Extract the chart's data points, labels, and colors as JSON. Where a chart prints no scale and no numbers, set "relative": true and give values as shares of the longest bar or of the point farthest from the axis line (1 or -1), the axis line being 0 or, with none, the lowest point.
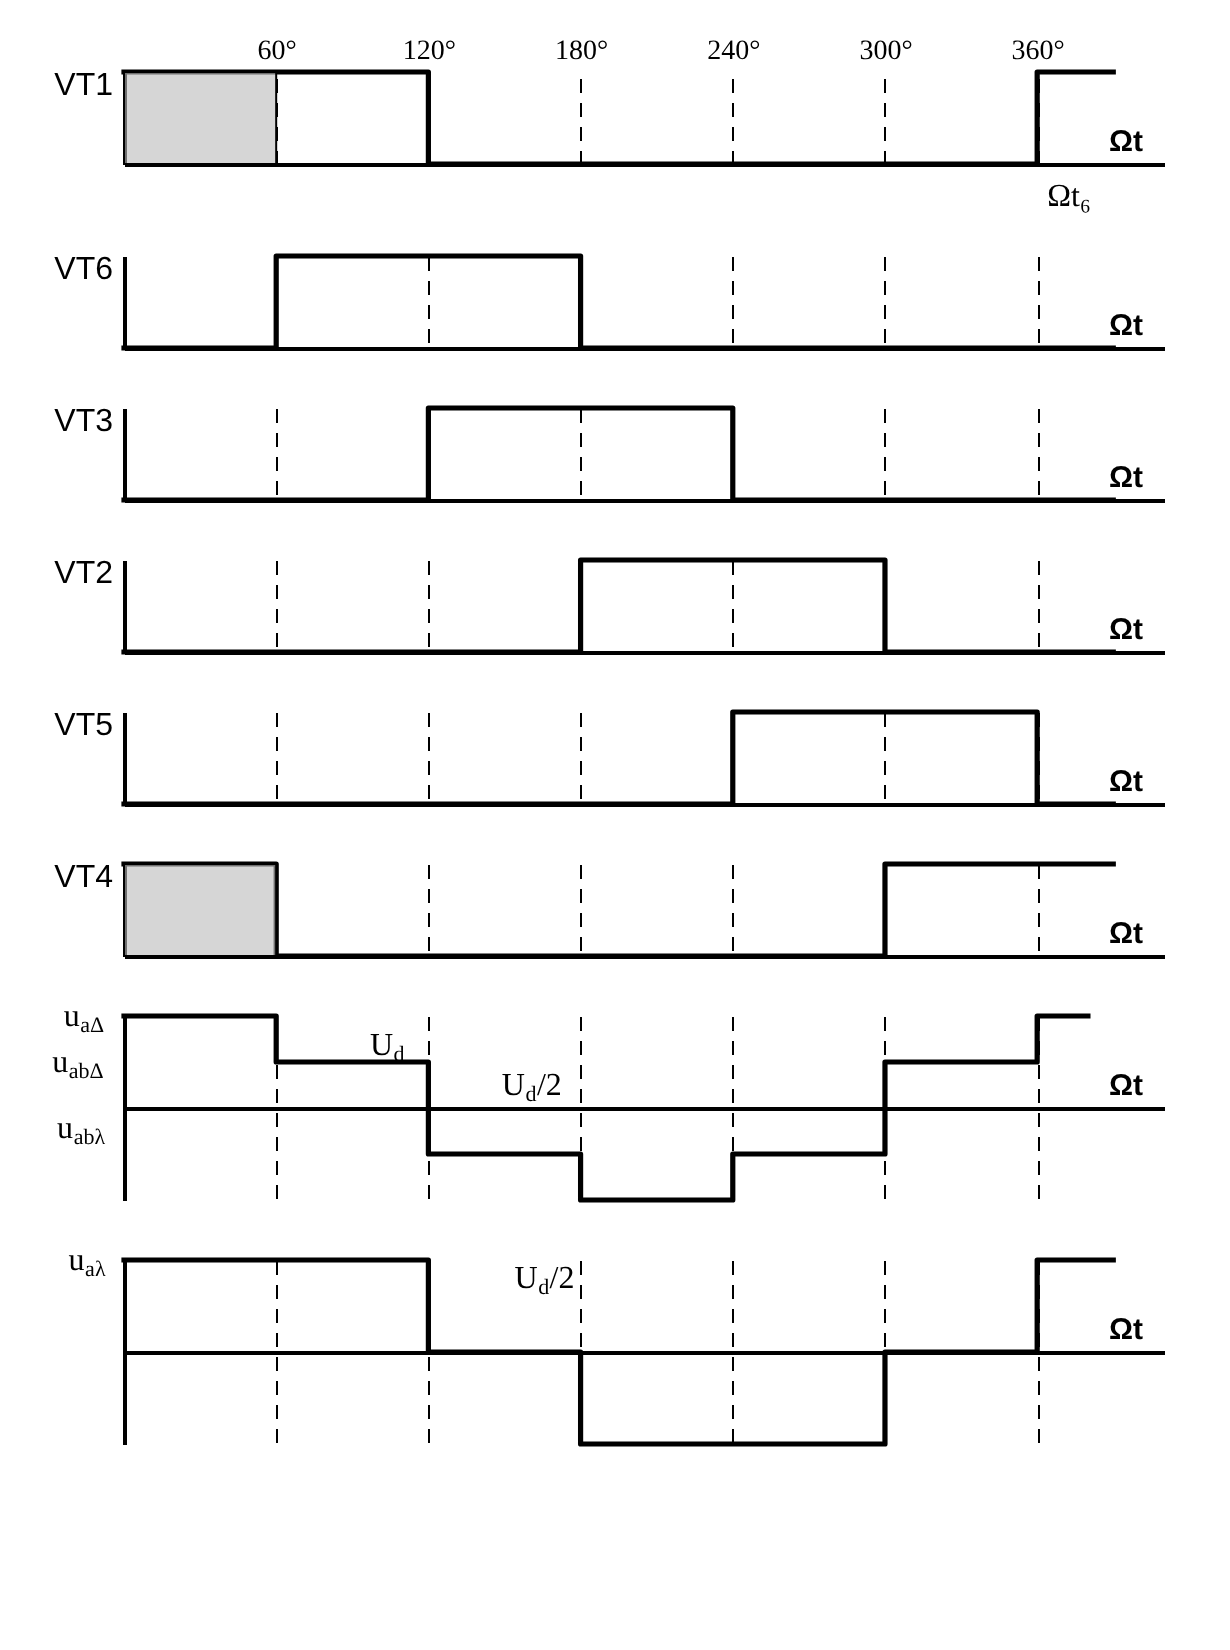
{
  "chart_data": [
    {
      "type": "step",
      "relative": true,
      "ylabel": "VT1",
      "xlabel": "Ωt",
      "x": [
        0,
        120,
        360,
        390
      ],
      "values": [
        1,
        0,
        1,
        1
      ],
      "color": "#000000",
      "xlim": [
        0,
        410
      ],
      "xticks": [
        {
          "value": 60,
          "label": "60°"
        },
        {
          "value": 120,
          "label": "120°"
        },
        {
          "value": 180,
          "label": "180°"
        },
        {
          "value": 240,
          "label": "240°"
        },
        {
          "value": 300,
          "label": "300°"
        },
        {
          "value": 360,
          "label": "360°"
        }
      ],
      "grid": "x",
      "tick_labels": "x",
      "bands": [
        {
          "axis": "x",
          "from": 0,
          "to": 60,
          "color": "#bbbbbb"
        }
      ],
      "annotations": [
        "Ωt₆"
      ]
    },
    {
      "type": "step",
      "relative": true,
      "ylabel": "VT6",
      "xlabel": "Ωt",
      "x": [
        0,
        60,
        180,
        390
      ],
      "values": [
        0,
        1,
        0,
        0
      ],
      "color": "#000000",
      "xlim": [
        0,
        410
      ],
      "xticks": [
        {
          "value": 60,
          "label": null
        },
        {
          "value": 120,
          "label": null
        },
        {
          "value": 180,
          "label": null
        },
        {
          "value": 240,
          "label": null
        },
        {
          "value": 300,
          "label": null
        },
        {
          "value": 360,
          "label": null
        }
      ],
      "grid": "x",
      "tick_labels": false
    },
    {
      "type": "step",
      "relative": true,
      "ylabel": "VT3",
      "xlabel": "Ωt",
      "x": [
        0,
        120,
        240,
        390
      ],
      "values": [
        0,
        1,
        0,
        0
      ],
      "color": "#000000",
      "xlim": [
        0,
        410
      ],
      "xticks": [
        {
          "value": 60,
          "label": null
        },
        {
          "value": 120,
          "label": null
        },
        {
          "value": 180,
          "label": null
        },
        {
          "value": 240,
          "label": null
        },
        {
          "value": 300,
          "label": null
        },
        {
          "value": 360,
          "label": null
        }
      ],
      "grid": "x",
      "tick_labels": false
    },
    {
      "type": "step",
      "relative": true,
      "ylabel": "VT2",
      "xlabel": "Ωt",
      "x": [
        0,
        180,
        300,
        390
      ],
      "values": [
        0,
        1,
        0,
        0
      ],
      "color": "#000000",
      "xlim": [
        0,
        410
      ],
      "xticks": [
        {
          "value": 60,
          "label": null
        },
        {
          "value": 120,
          "label": null
        },
        {
          "value": 180,
          "label": null
        },
        {
          "value": 240,
          "label": null
        },
        {
          "value": 300,
          "label": null
        },
        {
          "value": 360,
          "label": null
        }
      ],
      "grid": "x",
      "tick_labels": false
    },
    {
      "type": "step",
      "relative": true,
      "ylabel": "VT5",
      "xlabel": "Ωt",
      "x": [
        0,
        240,
        360,
        390
      ],
      "values": [
        0,
        1,
        0,
        0
      ],
      "color": "#000000",
      "xlim": [
        0,
        410
      ],
      "xticks": [
        {
          "value": 60,
          "label": null
        },
        {
          "value": 120,
          "label": null
        },
        {
          "value": 180,
          "label": null
        },
        {
          "value": 240,
          "label": null
        },
        {
          "value": 300,
          "label": null
        },
        {
          "value": 360,
          "label": null
        }
      ],
      "grid": "x",
      "tick_labels": false
    },
    {
      "type": "step",
      "relative": true,
      "ylabel": "VT4",
      "xlabel": "Ωt",
      "x": [
        0,
        60,
        300,
        390
      ],
      "values": [
        1,
        0,
        1,
        1
      ],
      "color": "#000000",
      "xlim": [
        0,
        410
      ],
      "xticks": [
        {
          "value": 60,
          "label": null
        },
        {
          "value": 120,
          "label": null
        },
        {
          "value": 180,
          "label": null
        },
        {
          "value": 240,
          "label": null
        },
        {
          "value": 300,
          "label": null
        },
        {
          "value": 360,
          "label": null
        }
      ],
      "grid": "x",
      "tick_labels": false,
      "bands": [
        {
          "axis": "x",
          "from": 0,
          "to": 60,
          "color": "#bbbbbb"
        }
      ]
    },
    {
      "type": "step",
      "relative": true,
      "xlabel": "Ωt",
      "x": [
        0,
        60,
        120,
        180,
        240,
        300,
        360,
        380
      ],
      "values": [
        1,
        0.5,
        -0.5,
        -1,
        -0.5,
        0.5,
        1,
        1
      ],
      "color": "#000000",
      "xlim": [
        0,
        410
      ],
      "xticks": [
        {
          "value": 60,
          "label": null
        },
        {
          "value": 120,
          "label": null
        },
        {
          "value": 180,
          "label": null
        },
        {
          "value": 240,
          "label": null
        },
        {
          "value": 300,
          "label": null
        },
        {
          "value": 360,
          "label": null
        }
      ],
      "grid": "x",
      "tick_labels": false,
      "annotations": [
        {
          "text": "u$_{aΔ}$",
          "x": 0,
          "y": 1
        },
        "u$_{abΔ}$",
        "u$_{abλ}$",
        "U$_{d}$",
        "U$_{d}$/2"
      ]
    },
    {
      "type": "step",
      "relative": true,
      "xlabel": "Ωt",
      "x": [
        0,
        120,
        180,
        300,
        360,
        390
      ],
      "values": [
        1,
        0,
        -1,
        0,
        1,
        1
      ],
      "color": "#000000",
      "xlim": [
        0,
        410
      ],
      "xticks": [
        {
          "value": 60,
          "label": null
        },
        {
          "value": 120,
          "label": null
        },
        {
          "value": 180,
          "label": null
        },
        {
          "value": 240,
          "label": null
        },
        {
          "value": 300,
          "label": null
        },
        {
          "value": 360,
          "label": null
        }
      ],
      "grid": "x",
      "tick_labels": false,
      "annotations": [
        {
          "text": "u$_{aλ}$",
          "x": 0,
          "y": 1
        },
        "U$_{d}$/2"
      ]
    }
  ]
}
